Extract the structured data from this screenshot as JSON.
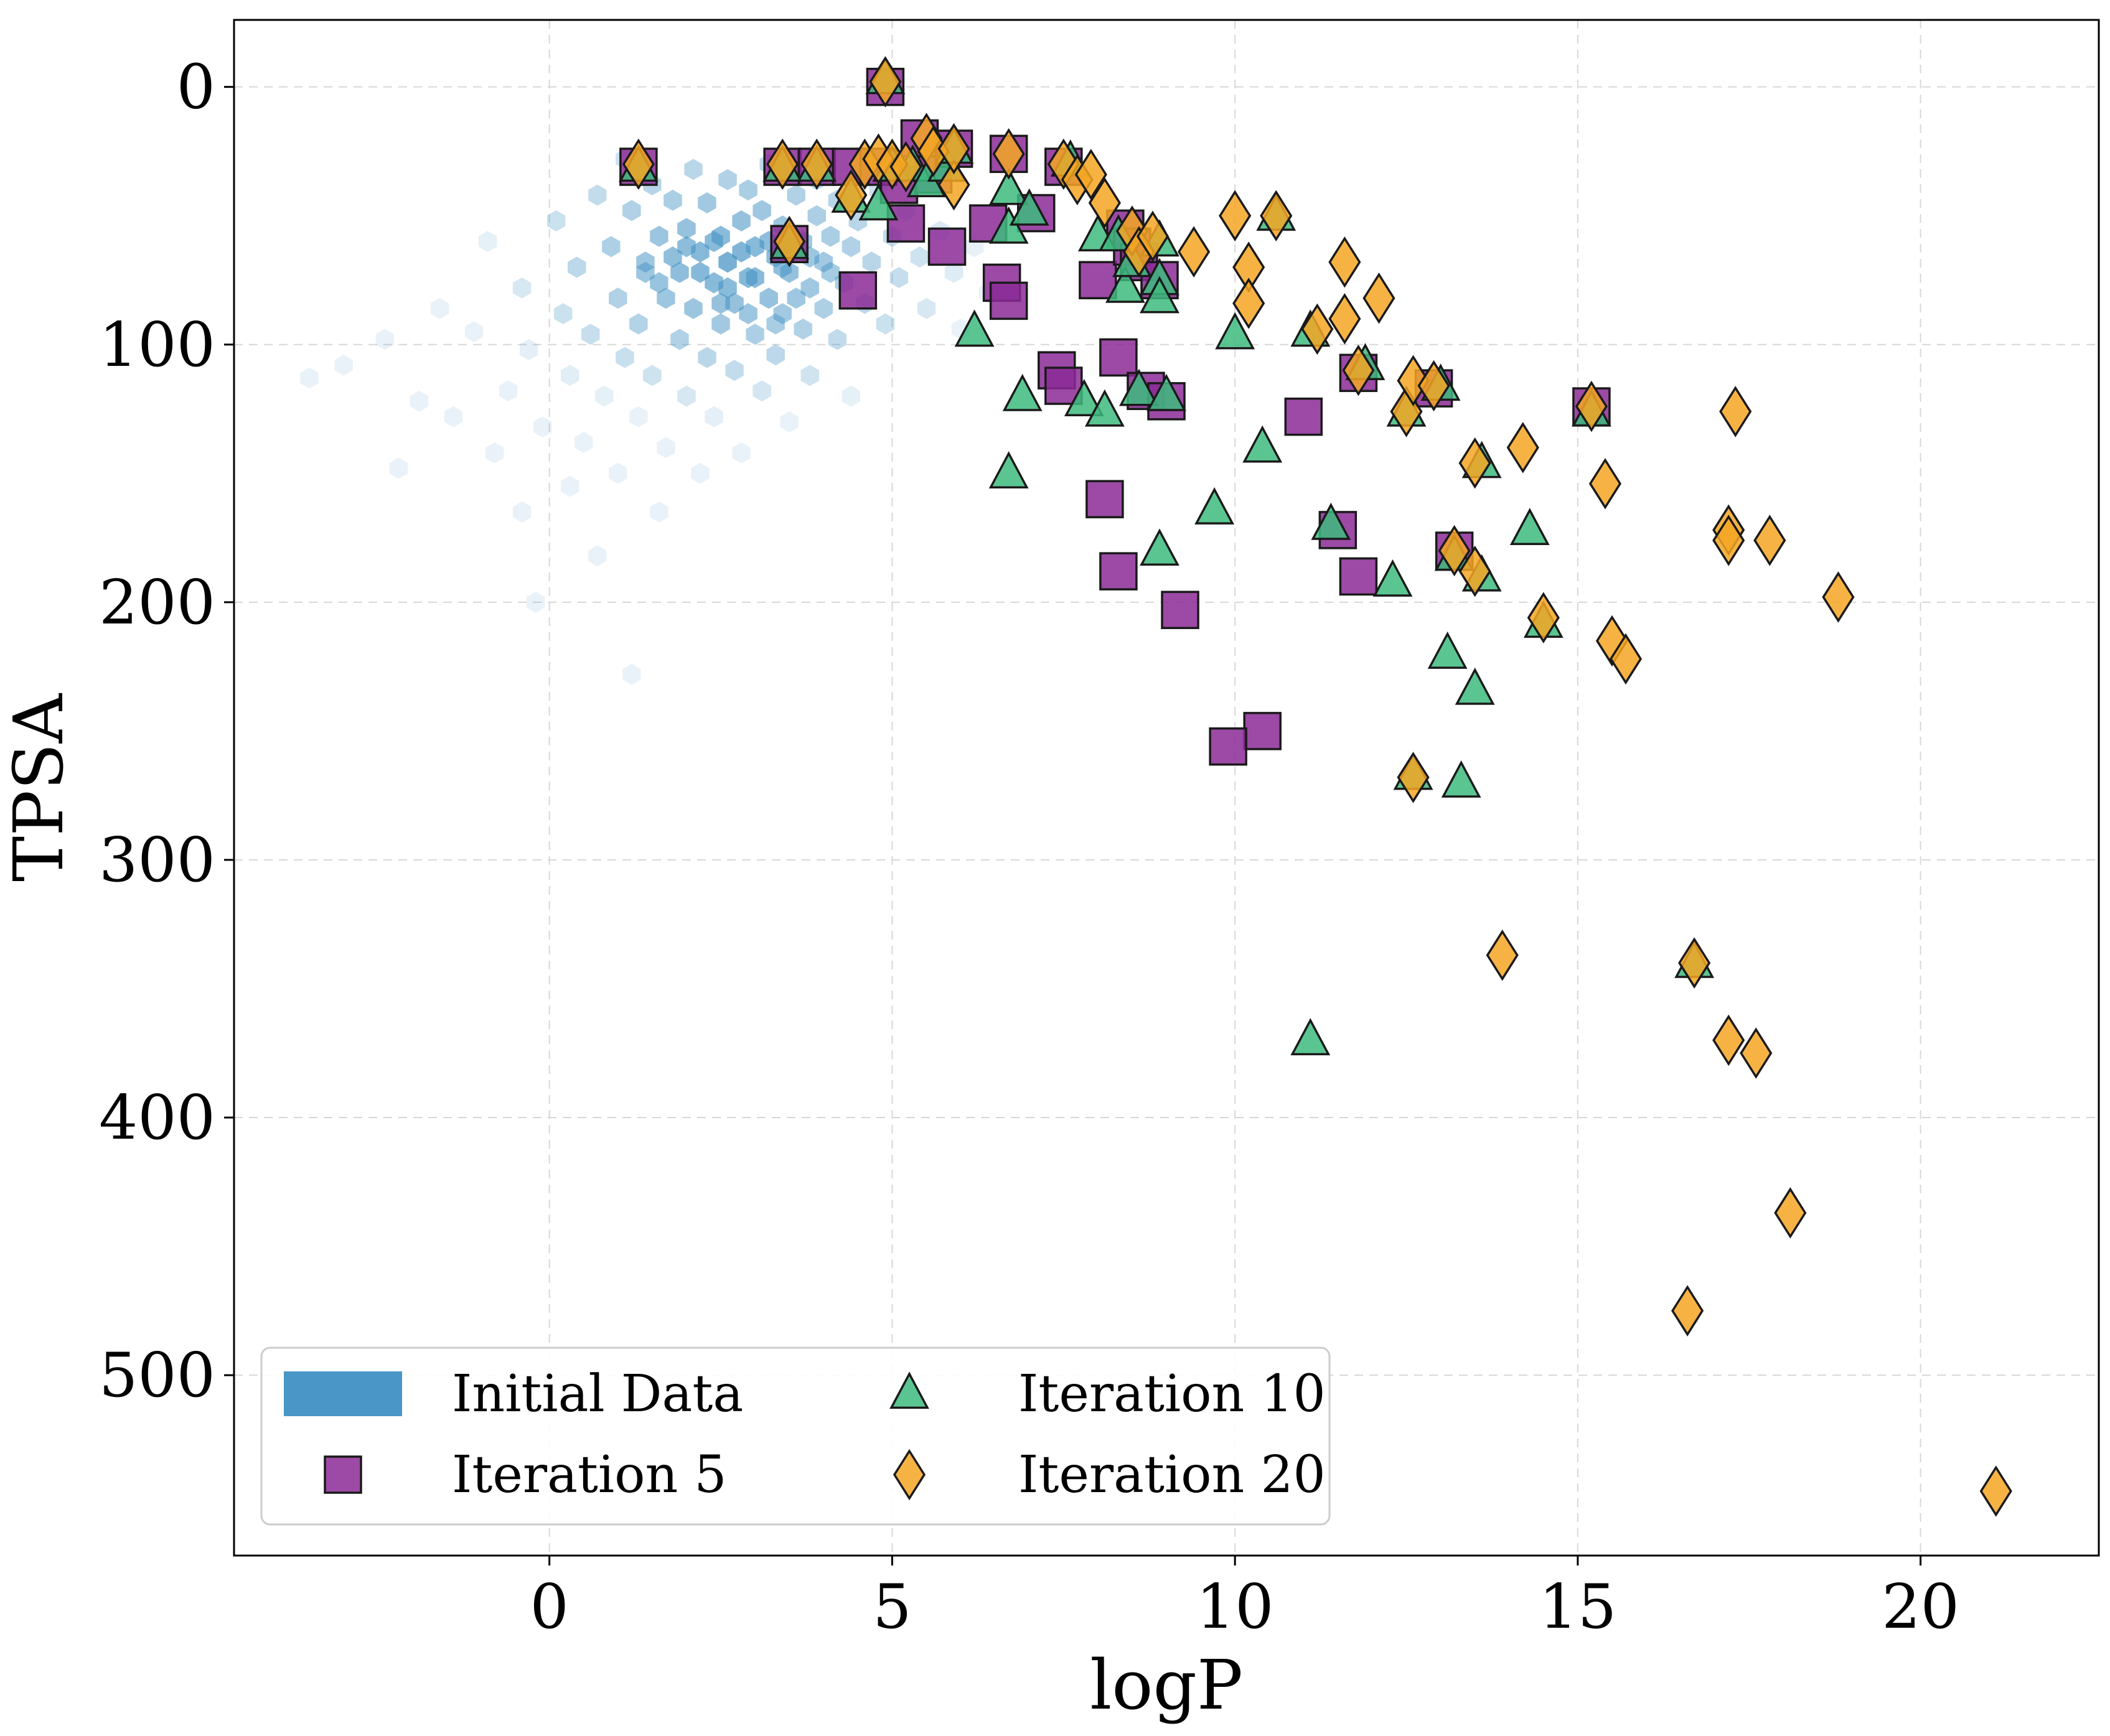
{
  "chart_data": {
    "type": "scatter",
    "xlabel": "logP",
    "ylabel": "TPSA",
    "xlim": [
      -4.6,
      22.6
    ],
    "ylim": [
      570,
      -26
    ],
    "y_inverted": true,
    "grid": true,
    "xticks": [
      0,
      5,
      10,
      15,
      20
    ],
    "yticks": [
      0,
      100,
      200,
      300,
      400,
      500
    ],
    "legend_position": "bottom-left",
    "legend_columns": 2,
    "colors": {
      "initial": "#4a96c6",
      "iteration5": "#8b2a96",
      "iteration10": "#3dbb7e",
      "iteration20": "#f5a623",
      "edge": "#1a1a1a",
      "grid": "#d8d8d8"
    },
    "series": [
      {
        "name": "Initial Data",
        "marker": "hexbin",
        "points": [
          [
            -3.5,
            113
          ],
          [
            -3.0,
            108
          ],
          [
            -2.4,
            98
          ],
          [
            -2.2,
            148
          ],
          [
            -1.9,
            122
          ],
          [
            -1.6,
            86
          ],
          [
            -1.4,
            128
          ],
          [
            -1.1,
            95
          ],
          [
            -0.9,
            60
          ],
          [
            -0.8,
            142
          ],
          [
            -0.6,
            118
          ],
          [
            -0.4,
            78
          ],
          [
            -0.4,
            165
          ],
          [
            -0.3,
            102
          ],
          [
            -0.2,
            200
          ],
          [
            -0.1,
            132
          ],
          [
            0.1,
            52
          ],
          [
            0.2,
            88
          ],
          [
            0.3,
            112
          ],
          [
            0.3,
            155
          ],
          [
            0.4,
            70
          ],
          [
            0.5,
            138
          ],
          [
            0.6,
            96
          ],
          [
            0.7,
            42
          ],
          [
            0.7,
            182
          ],
          [
            0.8,
            120
          ],
          [
            0.9,
            62
          ],
          [
            1.0,
            82
          ],
          [
            1.0,
            150
          ],
          [
            1.1,
            105
          ],
          [
            1.1,
            28
          ],
          [
            1.2,
            48
          ],
          [
            1.2,
            228
          ],
          [
            1.3,
            92
          ],
          [
            1.3,
            128
          ],
          [
            1.4,
            68
          ],
          [
            1.5,
            38
          ],
          [
            1.5,
            112
          ],
          [
            1.6,
            58
          ],
          [
            1.6,
            165
          ],
          [
            1.7,
            82
          ],
          [
            1.7,
            140
          ],
          [
            1.8,
            44
          ],
          [
            1.9,
            98
          ],
          [
            1.9,
            72
          ],
          [
            2.0,
            120
          ],
          [
            2.0,
            55
          ],
          [
            2.1,
            32
          ],
          [
            2.1,
            86
          ],
          [
            2.2,
            64
          ],
          [
            2.2,
            150
          ],
          [
            2.3,
            105
          ],
          [
            2.3,
            45
          ],
          [
            2.4,
            76
          ],
          [
            2.4,
            128
          ],
          [
            2.5,
            58
          ],
          [
            2.5,
            92
          ],
          [
            2.6,
            36
          ],
          [
            2.6,
            68
          ],
          [
            2.7,
            110
          ],
          [
            2.7,
            84
          ],
          [
            2.8,
            52
          ],
          [
            2.8,
            142
          ],
          [
            2.9,
            74
          ],
          [
            2.9,
            40
          ],
          [
            3.0,
            96
          ],
          [
            3.0,
            62
          ],
          [
            3.1,
            118
          ],
          [
            3.1,
            48
          ],
          [
            3.2,
            82
          ],
          [
            3.2,
            30
          ],
          [
            3.3,
            66
          ],
          [
            3.3,
            104
          ],
          [
            3.4,
            54
          ],
          [
            3.4,
            88
          ],
          [
            3.5,
            72
          ],
          [
            3.5,
            130
          ],
          [
            3.6,
            42
          ],
          [
            3.7,
            94
          ],
          [
            3.7,
            60
          ],
          [
            3.8,
            78
          ],
          [
            3.8,
            112
          ],
          [
            3.9,
            50
          ],
          [
            3.9,
            36
          ],
          [
            4.0,
            68
          ],
          [
            4.0,
            86
          ],
          [
            4.1,
            58
          ],
          [
            4.2,
            98
          ],
          [
            4.2,
            44
          ],
          [
            4.3,
            76
          ],
          [
            4.4,
            62
          ],
          [
            4.4,
            120
          ],
          [
            4.5,
            52
          ],
          [
            4.6,
            84
          ],
          [
            4.7,
            68
          ],
          [
            4.8,
            40
          ],
          [
            4.9,
            92
          ],
          [
            5.0,
            58
          ],
          [
            5.1,
            74
          ],
          [
            5.2,
            48
          ],
          [
            5.4,
            66
          ],
          [
            5.5,
            86
          ],
          [
            5.7,
            56
          ],
          [
            5.9,
            72
          ],
          [
            6.0,
            94
          ],
          [
            6.2,
            62
          ],
          [
            6.4,
            80
          ],
          [
            1.4,
            72
          ],
          [
            1.8,
            66
          ],
          [
            2.2,
            72
          ],
          [
            2.6,
            78
          ],
          [
            3.0,
            74
          ],
          [
            3.4,
            70
          ],
          [
            3.8,
            66
          ],
          [
            2.0,
            62
          ],
          [
            2.4,
            60
          ],
          [
            2.8,
            64
          ],
          [
            3.2,
            60
          ],
          [
            1.6,
            76
          ],
          [
            3.6,
            82
          ],
          [
            4.1,
            72
          ],
          [
            2.5,
            84
          ],
          [
            2.9,
            88
          ],
          [
            3.3,
            92
          ]
        ]
      },
      {
        "name": "Iteration 5",
        "marker": "square",
        "points": [
          [
            1.3,
            31
          ],
          [
            3.4,
            31
          ],
          [
            3.5,
            61
          ],
          [
            3.9,
            31
          ],
          [
            4.4,
            31
          ],
          [
            4.5,
            79
          ],
          [
            4.9,
            0
          ],
          [
            4.8,
            31
          ],
          [
            5.1,
            38
          ],
          [
            5.2,
            53
          ],
          [
            5.4,
            20
          ],
          [
            5.6,
            34
          ],
          [
            5.8,
            62
          ],
          [
            5.9,
            24
          ],
          [
            6.4,
            53
          ],
          [
            6.6,
            76
          ],
          [
            6.7,
            83
          ],
          [
            6.7,
            26
          ],
          [
            7.1,
            49
          ],
          [
            7.4,
            110
          ],
          [
            7.5,
            116
          ],
          [
            7.5,
            31
          ],
          [
            8.0,
            75
          ],
          [
            8.1,
            160
          ],
          [
            8.3,
            105
          ],
          [
            8.3,
            188
          ],
          [
            8.4,
            55
          ],
          [
            8.5,
            62
          ],
          [
            8.6,
            68
          ],
          [
            8.7,
            118
          ],
          [
            8.9,
            75
          ],
          [
            9.0,
            122
          ],
          [
            9.2,
            203
          ],
          [
            11.0,
            128
          ],
          [
            10.4,
            250
          ],
          [
            9.9,
            256
          ],
          [
            11.5,
            172
          ],
          [
            11.8,
            190
          ],
          [
            11.8,
            111
          ],
          [
            12.9,
            117
          ],
          [
            13.2,
            180
          ],
          [
            15.2,
            124
          ]
        ]
      },
      {
        "name": "Iteration 10",
        "marker": "triangle",
        "points": [
          [
            1.3,
            31
          ],
          [
            3.4,
            31
          ],
          [
            3.5,
            61
          ],
          [
            3.9,
            31
          ],
          [
            4.4,
            43
          ],
          [
            4.8,
            46
          ],
          [
            4.9,
            -3
          ],
          [
            5.0,
            31
          ],
          [
            5.3,
            31
          ],
          [
            5.5,
            37
          ],
          [
            5.8,
            31
          ],
          [
            5.9,
            24
          ],
          [
            6.2,
            95
          ],
          [
            6.7,
            55
          ],
          [
            6.7,
            40
          ],
          [
            6.7,
            150
          ],
          [
            6.9,
            120
          ],
          [
            7.0,
            48
          ],
          [
            7.6,
            29
          ],
          [
            7.8,
            122
          ],
          [
            8.0,
            58
          ],
          [
            8.1,
            126
          ],
          [
            8.3,
            58
          ],
          [
            8.4,
            78
          ],
          [
            8.5,
            68
          ],
          [
            8.6,
            118
          ],
          [
            8.9,
            75
          ],
          [
            8.9,
            60
          ],
          [
            8.9,
            82
          ],
          [
            9.0,
            120
          ],
          [
            8.9,
            180
          ],
          [
            9.7,
            164
          ],
          [
            10.0,
            96
          ],
          [
            10.4,
            140
          ],
          [
            10.6,
            50
          ],
          [
            11.1,
            370
          ],
          [
            11.1,
            95
          ],
          [
            11.4,
            170
          ],
          [
            11.9,
            108
          ],
          [
            12.3,
            192
          ],
          [
            12.5,
            126
          ],
          [
            12.6,
            267
          ],
          [
            13.0,
            116
          ],
          [
            13.1,
            220
          ],
          [
            13.3,
            270
          ],
          [
            13.5,
            234
          ],
          [
            13.2,
            182
          ],
          [
            13.6,
            190
          ],
          [
            13.6,
            146
          ],
          [
            14.3,
            172
          ],
          [
            14.5,
            208
          ],
          [
            15.2,
            126
          ],
          [
            16.7,
            340
          ]
        ]
      },
      {
        "name": "Iteration 20",
        "marker": "diamond",
        "points": [
          [
            1.3,
            30
          ],
          [
            3.4,
            30
          ],
          [
            3.5,
            60
          ],
          [
            3.9,
            30
          ],
          [
            4.4,
            42
          ],
          [
            4.6,
            30
          ],
          [
            4.8,
            28
          ],
          [
            4.9,
            -2
          ],
          [
            5.0,
            30
          ],
          [
            5.2,
            31
          ],
          [
            5.5,
            20
          ],
          [
            5.6,
            25
          ],
          [
            5.9,
            38
          ],
          [
            5.9,
            24
          ],
          [
            6.7,
            26
          ],
          [
            7.5,
            30
          ],
          [
            7.7,
            36
          ],
          [
            7.9,
            34
          ],
          [
            8.1,
            45
          ],
          [
            8.5,
            56
          ],
          [
            8.6,
            64
          ],
          [
            8.8,
            58
          ],
          [
            9.4,
            64
          ],
          [
            10.0,
            50
          ],
          [
            10.2,
            70
          ],
          [
            10.2,
            84
          ],
          [
            10.6,
            50
          ],
          [
            11.2,
            94
          ],
          [
            11.6,
            90
          ],
          [
            11.6,
            68
          ],
          [
            11.8,
            110
          ],
          [
            12.1,
            82
          ],
          [
            12.5,
            126
          ],
          [
            12.6,
            114
          ],
          [
            12.6,
            268
          ],
          [
            12.9,
            116
          ],
          [
            13.2,
            180
          ],
          [
            13.5,
            188
          ],
          [
            13.5,
            146
          ],
          [
            13.9,
            337
          ],
          [
            14.2,
            140
          ],
          [
            14.5,
            206
          ],
          [
            15.2,
            124
          ],
          [
            15.4,
            154
          ],
          [
            15.5,
            215
          ],
          [
            15.7,
            222
          ],
          [
            16.6,
            475
          ],
          [
            16.7,
            340
          ],
          [
            17.2,
            172
          ],
          [
            17.2,
            176
          ],
          [
            17.2,
            370
          ],
          [
            17.3,
            126
          ],
          [
            17.6,
            375
          ],
          [
            17.8,
            176
          ],
          [
            18.1,
            437
          ],
          [
            18.8,
            198
          ],
          [
            21.1,
            545
          ]
        ]
      }
    ]
  }
}
